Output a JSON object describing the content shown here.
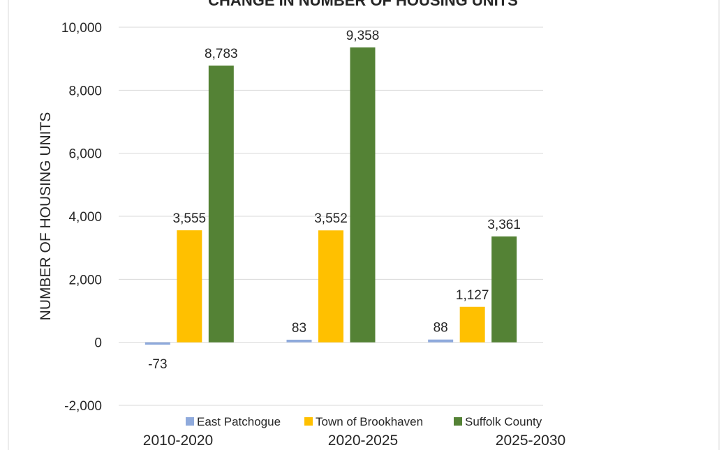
{
  "chart_data": {
    "type": "bar",
    "title": "CHANGE IN NUMBER OF HOUSING UNITS",
    "xlabel": "",
    "ylabel": "NUMBER OF HOUSING UNITS",
    "ylim": [
      -2000,
      10000
    ],
    "yticks": [
      -2000,
      0,
      2000,
      4000,
      6000,
      8000,
      10000
    ],
    "ytick_labels": [
      "-2,000",
      "0",
      "2,000",
      "4,000",
      "6,000",
      "8,000",
      "10,000"
    ],
    "categories": [
      "2010-2020",
      "2020-2025",
      "2025-2030"
    ],
    "series": [
      {
        "name": "East Patchogue",
        "values": [
          -73,
          83,
          88
        ],
        "labels": [
          "-73",
          "83",
          "88"
        ],
        "color": "#8faadc"
      },
      {
        "name": "Town of Brookhaven",
        "values": [
          3555,
          3552,
          1127
        ],
        "labels": [
          "3,555",
          "3,552",
          "1,127"
        ],
        "color": "#ffc000"
      },
      {
        "name": "Suffolk County",
        "values": [
          8783,
          9358,
          3361
        ],
        "labels": [
          "8,783",
          "9,358",
          "3,361"
        ],
        "color": "#548235"
      }
    ],
    "grid": true,
    "legend_position": "bottom",
    "colors": {
      "grid": "#d9d9d9",
      "text": "#262626",
      "border": "#d9d9d9"
    }
  }
}
